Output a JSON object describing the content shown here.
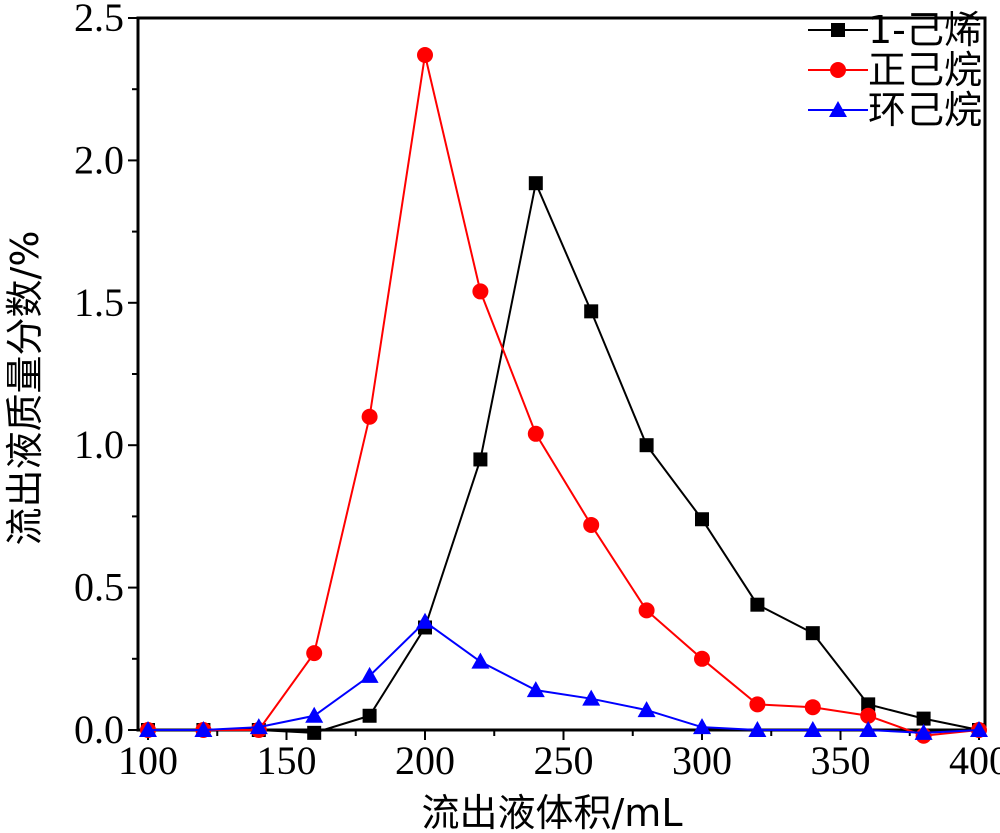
{
  "chart_data": {
    "type": "line",
    "xlabel": "流出液体积/mL",
    "ylabel": "流出液质量分数/%",
    "xlim": [
      100,
      400
    ],
    "ylim": [
      0,
      2.5
    ],
    "xticks": [
      "100",
      "150",
      "200",
      "250",
      "300",
      "350",
      "400"
    ],
    "yticks": [
      "0.0",
      "0.5",
      "1.0",
      "1.5",
      "2.0",
      "2.5"
    ],
    "grid": false,
    "legend_position": "top-right",
    "x": [
      100,
      120,
      140,
      160,
      180,
      200,
      220,
      240,
      260,
      280,
      300,
      320,
      340,
      360,
      380,
      400
    ],
    "series": [
      {
        "name": "1-己烯",
        "color": "#000000",
        "marker": "square",
        "values": [
          0.0,
          0.0,
          0.0,
          -0.01,
          0.05,
          0.36,
          0.95,
          1.92,
          1.47,
          1.0,
          0.74,
          0.44,
          0.34,
          0.09,
          0.04,
          0.0
        ]
      },
      {
        "name": "正己烷",
        "color": "#ff0000",
        "marker": "circle",
        "values": [
          0.0,
          0.0,
          0.0,
          0.27,
          1.1,
          2.37,
          1.54,
          1.04,
          0.72,
          0.42,
          0.25,
          0.09,
          0.08,
          0.05,
          -0.02,
          0.0
        ]
      },
      {
        "name": "环己烷",
        "color": "#0000ff",
        "marker": "triangle",
        "values": [
          0.0,
          0.0,
          0.01,
          0.05,
          0.19,
          0.38,
          0.24,
          0.14,
          0.11,
          0.07,
          0.01,
          0.0,
          0.0,
          0.0,
          -0.01,
          0.0
        ]
      }
    ]
  }
}
